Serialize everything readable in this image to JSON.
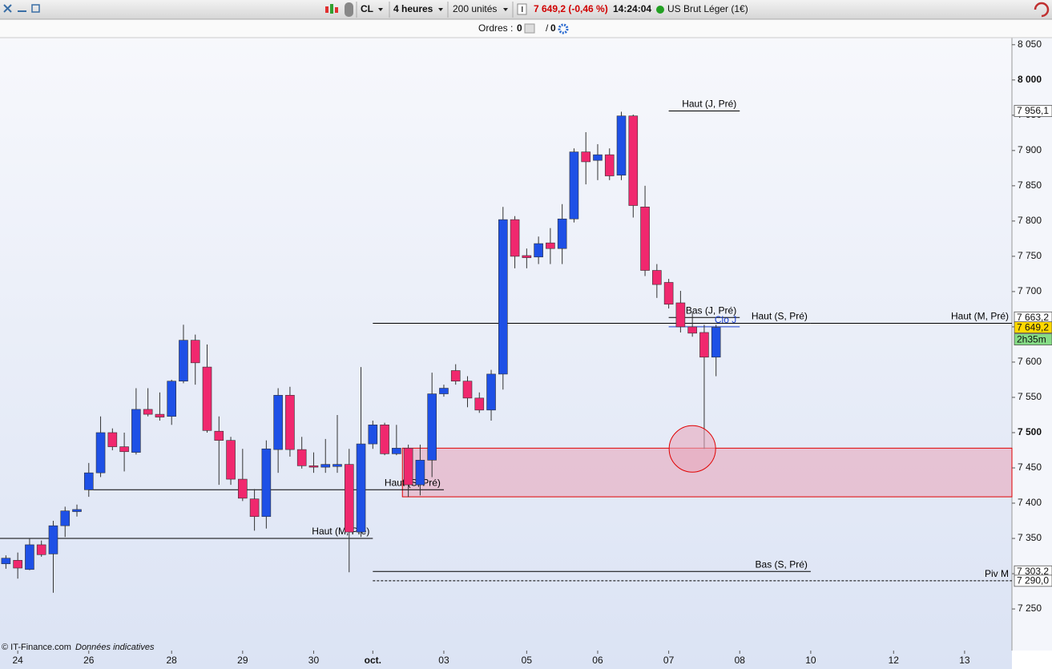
{
  "toolbar": {
    "symbol": "CL",
    "timeframe": "4 heures",
    "quantity": "200 unités",
    "price_change": "7 649,2 (-0,46 %)",
    "time": "14:24:04",
    "instrument": "US Brut Léger (1€)"
  },
  "orders_bar": {
    "label": "Ordres :",
    "pending": 0,
    "separator": "/",
    "executed": 0
  },
  "chart_data": {
    "type": "candlestick",
    "up_color": "#1e50e6",
    "down_color": "#f0286e",
    "open": [
      7314,
      7319,
      7306,
      7341,
      7328,
      7368,
      7388,
      7419,
      7443,
      7500,
      7480,
      7472,
      7533,
      7526,
      7523,
      7573,
      7631,
      7593,
      7502,
      7489,
      7434,
      7406,
      7381,
      7476,
      7553,
      7476,
      7453,
      7451,
      7452,
      7455,
      7359,
      7484,
      7511,
      7470,
      7478,
      7426,
      7461,
      7555,
      7588,
      7573,
      7549,
      7532,
      7583,
      7802,
      7751,
      7749,
      7769,
      7761,
      7803,
      7898,
      7886,
      7894,
      7865,
      7949,
      7820,
      7730,
      7713,
      7684,
      7650,
      7642,
      7607
    ],
    "high": [
      7326,
      7330,
      7350,
      7347,
      7375,
      7395,
      7398,
      7457,
      7523,
      7506,
      7500,
      7563,
      7563,
      7557,
      7575,
      7653,
      7639,
      7625,
      7523,
      7494,
      7477,
      7420,
      7489,
      7563,
      7565,
      7494,
      7472,
      7491,
      7525,
      7477,
      7593,
      7517,
      7514,
      7511,
      7483,
      7483,
      7585,
      7568,
      7597,
      7580,
      7557,
      7589,
      7820,
      7807,
      7761,
      7778,
      7790,
      7824,
      7903,
      7926,
      7909,
      7903,
      7955,
      7951,
      7850,
      7739,
      7718,
      7701,
      7670,
      7653,
      7653
    ],
    "low": [
      7307,
      7293,
      7305,
      7324,
      7273,
      7352,
      7381,
      7409,
      7437,
      7475,
      7445,
      7469,
      7523,
      7517,
      7511,
      7570,
      7568,
      7500,
      7426,
      7426,
      7403,
      7361,
      7364,
      7443,
      7466,
      7449,
      7443,
      7443,
      7443,
      7302,
      7352,
      7477,
      7468,
      7468,
      7409,
      7411,
      7437,
      7551,
      7568,
      7536,
      7528,
      7517,
      7561,
      7733,
      7733,
      7739,
      7739,
      7739,
      7798,
      7852,
      7858,
      7858,
      7858,
      7805,
      7722,
      7691,
      7676,
      7642,
      7636,
      7477,
      7580
    ],
    "close": [
      7322,
      7308,
      7341,
      7327,
      7368,
      7389,
      7391,
      7443,
      7500,
      7480,
      7473,
      7533,
      7526,
      7522,
      7573,
      7631,
      7599,
      7503,
      7489,
      7434,
      7407,
      7381,
      7477,
      7553,
      7476,
      7453,
      7451,
      7455,
      7455,
      7359,
      7484,
      7511,
      7470,
      7478,
      7426,
      7461,
      7555,
      7563,
      7573,
      7549,
      7532,
      7583,
      7802,
      7750,
      7748,
      7768,
      7761,
      7803,
      7898,
      7884,
      7894,
      7864,
      7949,
      7822,
      7730,
      7710,
      7682,
      7650,
      7641,
      7607,
      7649.2
    ],
    "xlim": [
      -0.5,
      85
    ],
    "xticks": [
      {
        "value": 1,
        "label": "24"
      },
      {
        "value": 7,
        "label": "26"
      },
      {
        "value": 14,
        "label": "28"
      },
      {
        "value": 20,
        "label": "29"
      },
      {
        "value": 26,
        "label": "30"
      },
      {
        "value": 31,
        "label": "oct."
      },
      {
        "value": 37,
        "label": "03"
      },
      {
        "value": 44,
        "label": "05"
      },
      {
        "value": 50,
        "label": "06"
      },
      {
        "value": 56,
        "label": "07"
      },
      {
        "value": 62,
        "label": "08"
      },
      {
        "value": 68,
        "label": "10"
      },
      {
        "value": 75,
        "label": "12"
      },
      {
        "value": 81,
        "label": "13"
      }
    ],
    "ylim": [
      7191,
      8060
    ],
    "yticks": [
      {
        "value": 7250,
        "label": "7 250"
      },
      {
        "value": 7300,
        "label": "7 300"
      },
      {
        "value": 7350,
        "label": "7 350"
      },
      {
        "value": 7400,
        "label": "7 400"
      },
      {
        "value": 7450,
        "label": "7 450"
      },
      {
        "value": 7500,
        "label": "7 500"
      },
      {
        "value": 7550,
        "label": "7 550"
      },
      {
        "value": 7600,
        "label": "7 600"
      },
      {
        "value": 7650,
        "label": "7 650"
      },
      {
        "value": 7700,
        "label": "7 700"
      },
      {
        "value": 7750,
        "label": "7 750"
      },
      {
        "value": 7800,
        "label": "7 800"
      },
      {
        "value": 7850,
        "label": "7 850"
      },
      {
        "value": 7900,
        "label": "7 900"
      },
      {
        "value": 7950,
        "label": "7 950"
      },
      {
        "value": 8000,
        "label": "8 000"
      },
      {
        "value": 8050,
        "label": "8 050"
      }
    ],
    "levels": [
      {
        "label": "Haut (J, Pré)",
        "value": 7956.1,
        "start": 56,
        "end": 62,
        "color": "#000000",
        "style": "solid"
      },
      {
        "label": "Bas (J, Pré)",
        "value": 7663.2,
        "start": 56,
        "end": 62,
        "color": "#000000",
        "style": "solid"
      },
      {
        "label": "Clo J",
        "value": 7650,
        "start": 56,
        "end": 62,
        "color": "#1a3fd0",
        "style": "solid"
      },
      {
        "label": "Haut (S, Pré)",
        "value": 7655,
        "start": 31,
        "end": 68,
        "color": "#000000",
        "style": "solid"
      },
      {
        "label": "Haut (M, Pré)",
        "value": 7655,
        "start": 68,
        "end": 85,
        "color": "#000000",
        "style": "solid"
      },
      {
        "label": "Haut (S, Pré)",
        "value": 7419,
        "start": 7,
        "end": 37,
        "color": "#000000",
        "style": "solid"
      },
      {
        "label": "Haut (M, Pré)",
        "value": 7350,
        "start": -0.5,
        "end": 31,
        "color": "#000000",
        "style": "solid"
      },
      {
        "label": "Bas (S, Pré)",
        "value": 7303.2,
        "start": 31,
        "end": 68,
        "color": "#000000",
        "style": "solid"
      },
      {
        "label": "Piv M",
        "value": 7290.0,
        "start": 31,
        "end": 85,
        "color": "#000000",
        "style": "dashed"
      }
    ],
    "zone": {
      "low": 7409,
      "high": 7478,
      "start": 33.5,
      "end": 85,
      "color": "#e8a8bc",
      "border": "#e00000"
    },
    "circle": {
      "x": 58,
      "y": 7477,
      "color": "#e00000"
    },
    "price_tags": [
      {
        "value": 7956.1,
        "label": "7 956,1",
        "color": "#ffffff"
      },
      {
        "value": 7663.2,
        "label": "7 663,2",
        "color": "#ffffff"
      },
      {
        "value": 7649.2,
        "label": "7 649,2",
        "color": "#ffd800"
      },
      {
        "value": 7303.2,
        "label": "7 303,2",
        "color": "#ffffff"
      },
      {
        "value": 7290.0,
        "label": "7 290,0",
        "color": "#ffffff"
      }
    ],
    "timer": {
      "label": "2h35m",
      "color": "#86dc86"
    }
  },
  "footer": {
    "source": "© IT-Finance.com",
    "note": "Données indicatives"
  }
}
